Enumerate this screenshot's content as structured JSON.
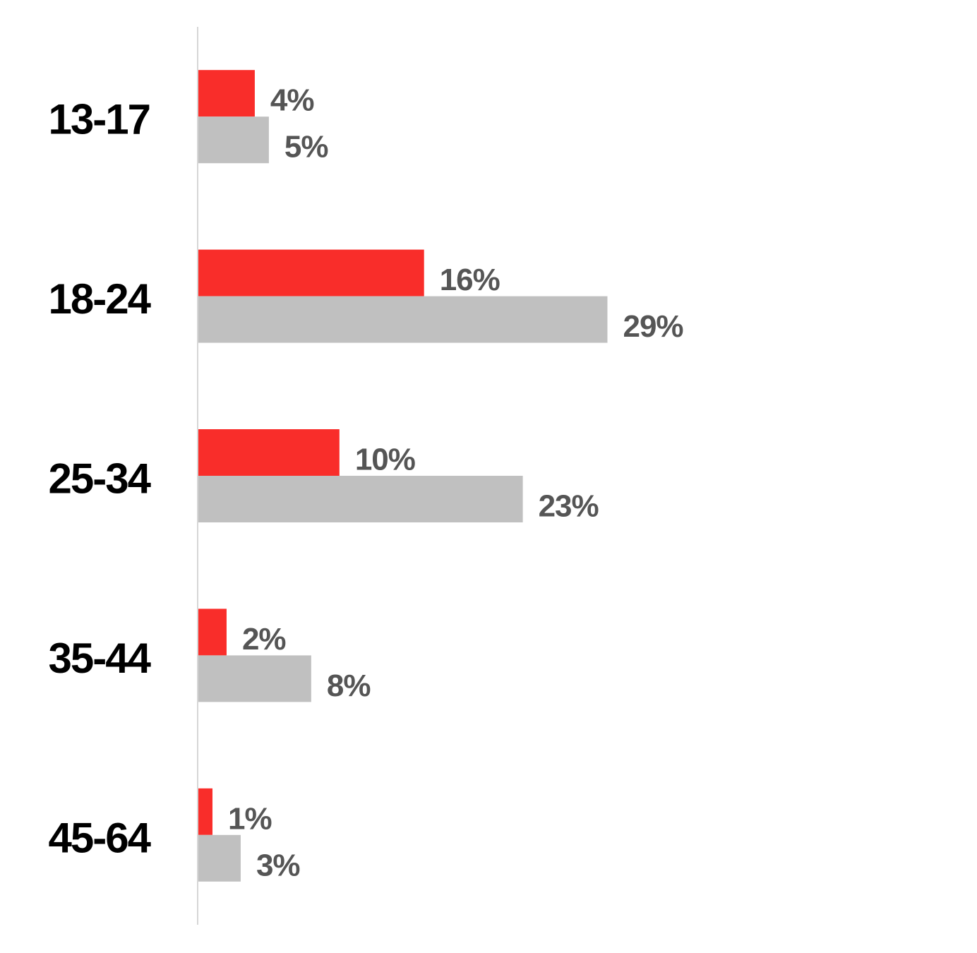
{
  "chart_data": {
    "type": "bar",
    "orientation": "horizontal",
    "categories": [
      "13-17",
      "18-24",
      "25-34",
      "35-44",
      "45-64"
    ],
    "series": [
      {
        "color": "#f92d2a",
        "values": [
          4,
          16,
          10,
          2,
          1
        ],
        "value_labels": [
          "4%",
          "16%",
          "10%",
          "2%",
          "1%"
        ]
      },
      {
        "color": "#c0c0c0",
        "values": [
          5,
          29,
          23,
          8,
          3
        ],
        "value_labels": [
          "5%",
          "29%",
          "23%",
          "8%",
          "3%"
        ]
      }
    ],
    "xlim": [
      0,
      55
    ]
  }
}
